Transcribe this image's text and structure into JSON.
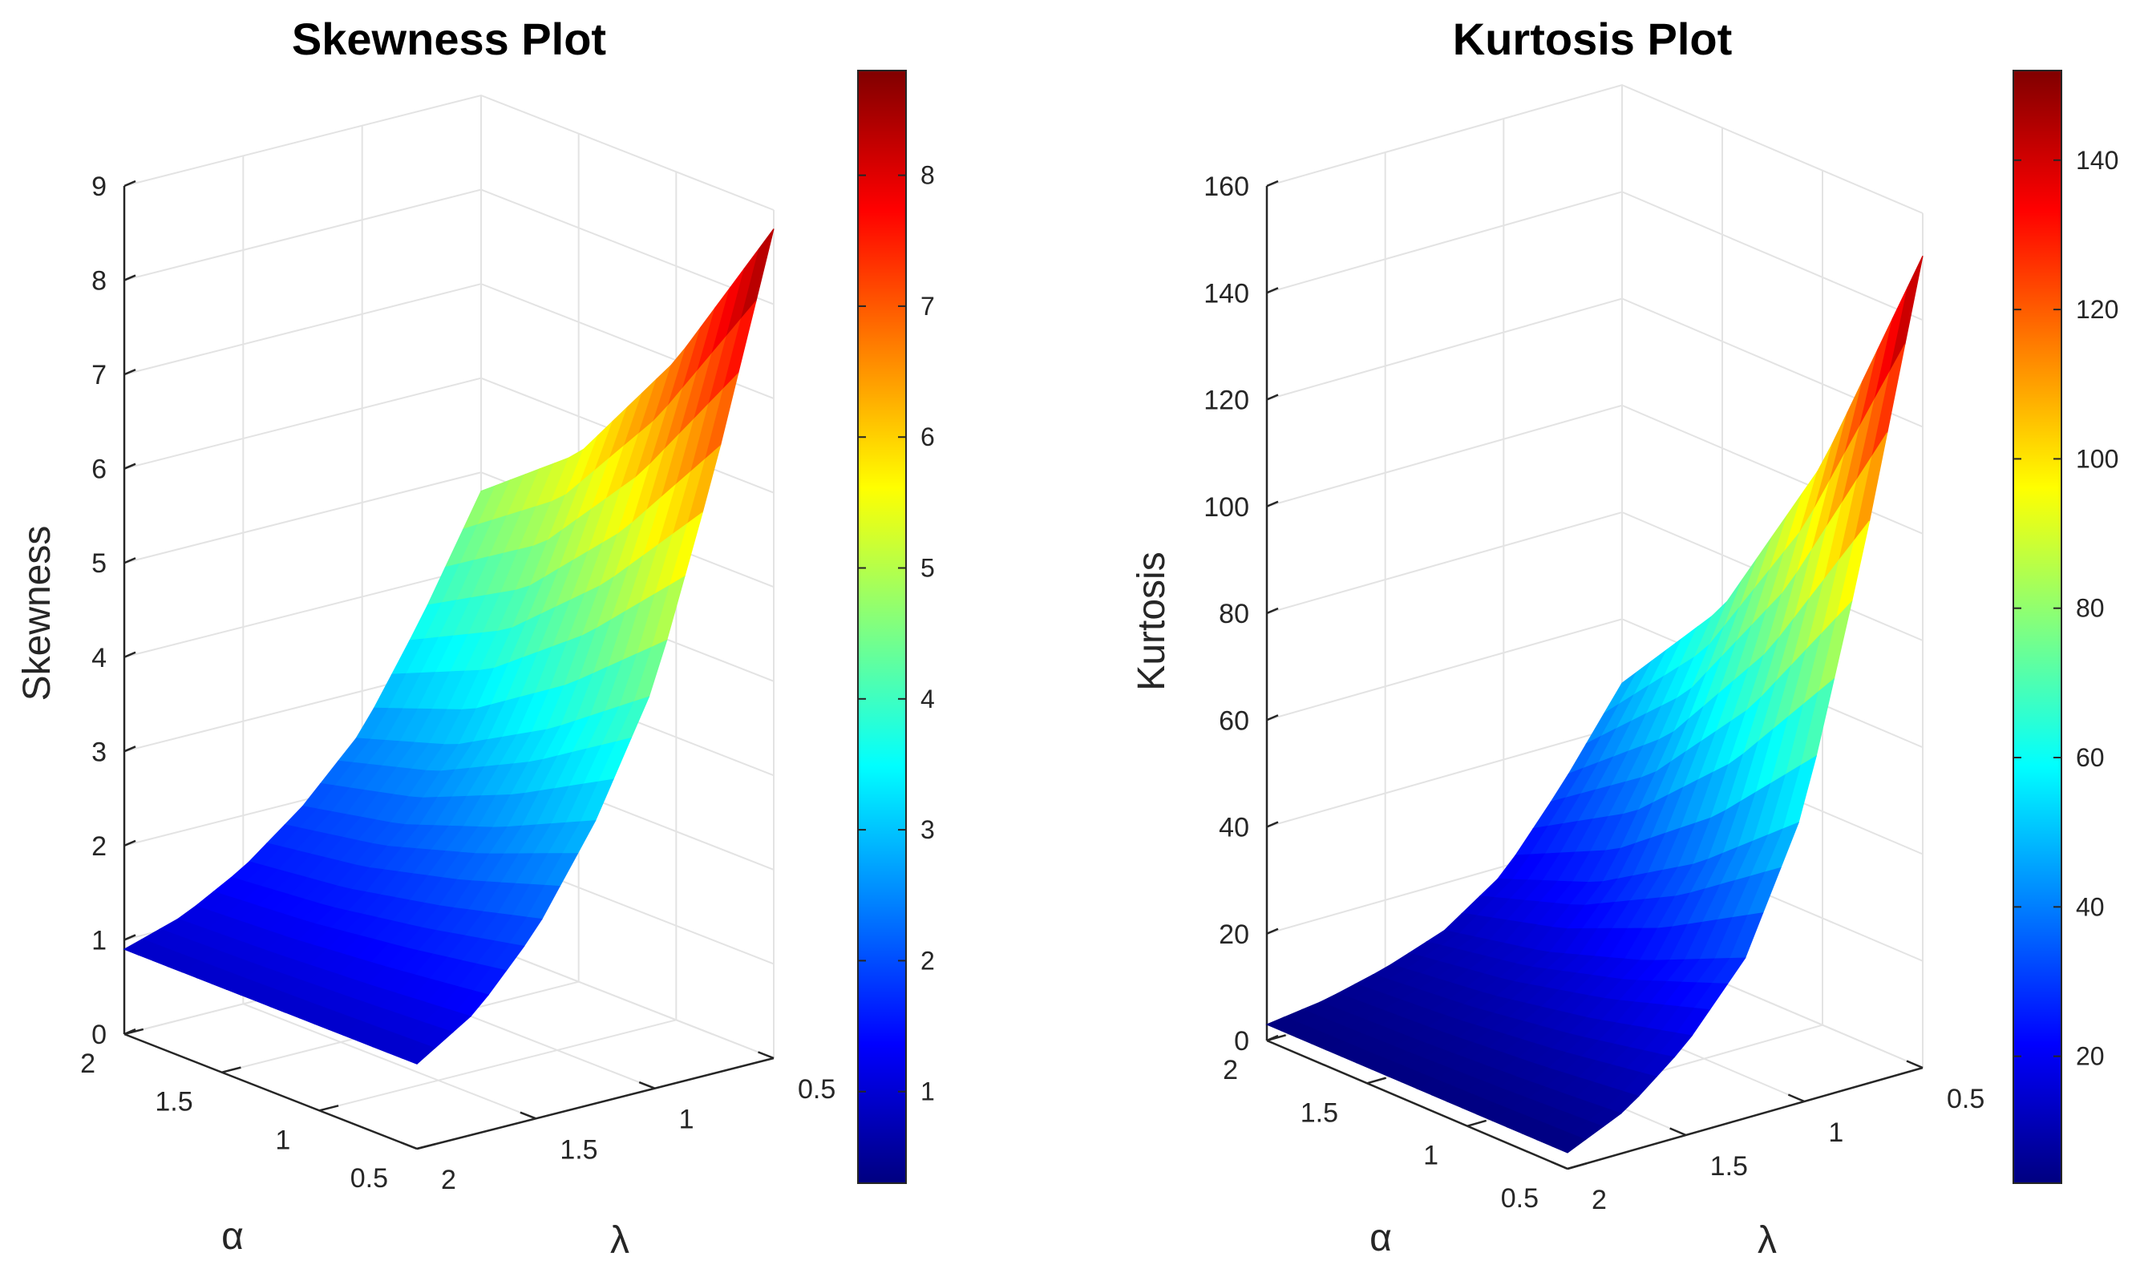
{
  "charts": [
    {
      "title": "Skewness Plot",
      "zlabel": "Skewness",
      "xlabel": "α",
      "ylabel": "λ",
      "z_ticks": [
        "0",
        "1",
        "2",
        "3",
        "4",
        "5",
        "6",
        "7",
        "8",
        "9"
      ],
      "alpha_ticks": [
        "2",
        "1.5",
        "1",
        "0.5"
      ],
      "lambda_ticks": [
        "2",
        "1.5",
        "1",
        "0.5"
      ],
      "cb_ticks": [
        "1",
        "2",
        "3",
        "4",
        "5",
        "6",
        "7",
        "8"
      ]
    },
    {
      "title": "Kurtosis Plot",
      "zlabel": "Kurtosis",
      "xlabel": "α",
      "ylabel": "λ",
      "z_ticks": [
        "0",
        "20",
        "40",
        "60",
        "80",
        "100",
        "120",
        "140",
        "160"
      ],
      "alpha_ticks": [
        "2",
        "1.5",
        "1",
        "0.5"
      ],
      "lambda_ticks": [
        "2",
        "1.5",
        "1",
        "0.5"
      ],
      "cb_ticks": [
        "20",
        "40",
        "60",
        "80",
        "100",
        "120",
        "140"
      ]
    }
  ],
  "chart_data": [
    {
      "type": "surface",
      "title": "Skewness Plot",
      "xlabel": "α",
      "ylabel": "λ",
      "zlabel": "Skewness",
      "xlim": [
        0.5,
        2
      ],
      "ylim": [
        0.5,
        2
      ],
      "zlim": [
        0,
        9
      ],
      "clim": [
        0.3,
        8.8
      ],
      "colormap": "jet",
      "grid": true,
      "corner_values": [
        {
          "alpha": 2,
          "lambda": 2,
          "z": 0.9
        },
        {
          "alpha": 0.5,
          "lambda": 2,
          "z": 0.9
        },
        {
          "alpha": 2,
          "lambda": 0.5,
          "z": 4.8
        },
        {
          "alpha": 0.5,
          "lambda": 0.5,
          "z": 8.8
        }
      ],
      "edge_alpha_0_5": [
        {
          "lambda": 2,
          "z": 0.9
        },
        {
          "lambda": 1.75,
          "z": 1.3
        },
        {
          "lambda": 1.5,
          "z": 2.0
        },
        {
          "lambda": 1.25,
          "z": 3.0
        },
        {
          "lambda": 1.0,
          "z": 4.3
        },
        {
          "lambda": 0.75,
          "z": 6.4
        },
        {
          "lambda": 0.5,
          "z": 8.8
        }
      ],
      "edge_lambda_0_5": [
        {
          "alpha": 2,
          "z": 4.8
        },
        {
          "alpha": 1.5,
          "z": 5.6
        },
        {
          "alpha": 1,
          "z": 7.0
        },
        {
          "alpha": 0.5,
          "z": 8.8
        }
      ]
    },
    {
      "type": "surface",
      "title": "Kurtosis Plot",
      "xlabel": "α",
      "ylabel": "λ",
      "zlabel": "Kurtosis",
      "xlim": [
        0.5,
        2
      ],
      "ylim": [
        0.5,
        2
      ],
      "zlim": [
        0,
        160
      ],
      "clim": [
        3,
        152
      ],
      "colormap": "jet",
      "grid": true,
      "corner_values": [
        {
          "alpha": 2,
          "lambda": 2,
          "z": 3
        },
        {
          "alpha": 0.5,
          "lambda": 2,
          "z": 3
        },
        {
          "alpha": 2,
          "lambda": 0.5,
          "z": 48
        },
        {
          "alpha": 0.5,
          "lambda": 0.5,
          "z": 152
        }
      ],
      "edge_alpha_0_5": [
        {
          "lambda": 2,
          "z": 3
        },
        {
          "lambda": 1.75,
          "z": 8
        },
        {
          "lambda": 1.5,
          "z": 17
        },
        {
          "lambda": 1.25,
          "z": 30
        },
        {
          "lambda": 1.0,
          "z": 55
        },
        {
          "lambda": 0.75,
          "z": 100
        },
        {
          "lambda": 0.5,
          "z": 152
        }
      ],
      "edge_lambda_0_5": [
        {
          "alpha": 2,
          "z": 48
        },
        {
          "alpha": 1.5,
          "z": 70
        },
        {
          "alpha": 1,
          "z": 105
        },
        {
          "alpha": 0.5,
          "z": 152
        }
      ]
    }
  ]
}
